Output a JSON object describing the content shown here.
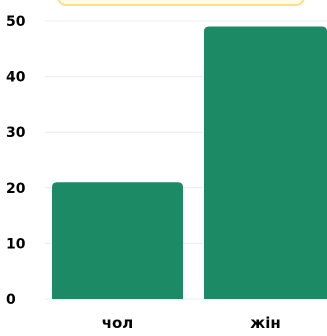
{
  "chart_data": {
    "type": "bar",
    "categories": [
      "чол",
      "жін"
    ],
    "values": [
      21,
      49
    ],
    "ylim": [
      0,
      50
    ],
    "yticks": [
      0,
      10,
      20,
      30,
      40,
      50
    ],
    "grid": true,
    "title": "",
    "xlabel": "",
    "ylabel": ""
  },
  "colors": {
    "bar": "#1d8a66",
    "grid": "#ececec",
    "top_banner_border": "#fbe08a",
    "top_banner_fill": "#fffbe8"
  }
}
